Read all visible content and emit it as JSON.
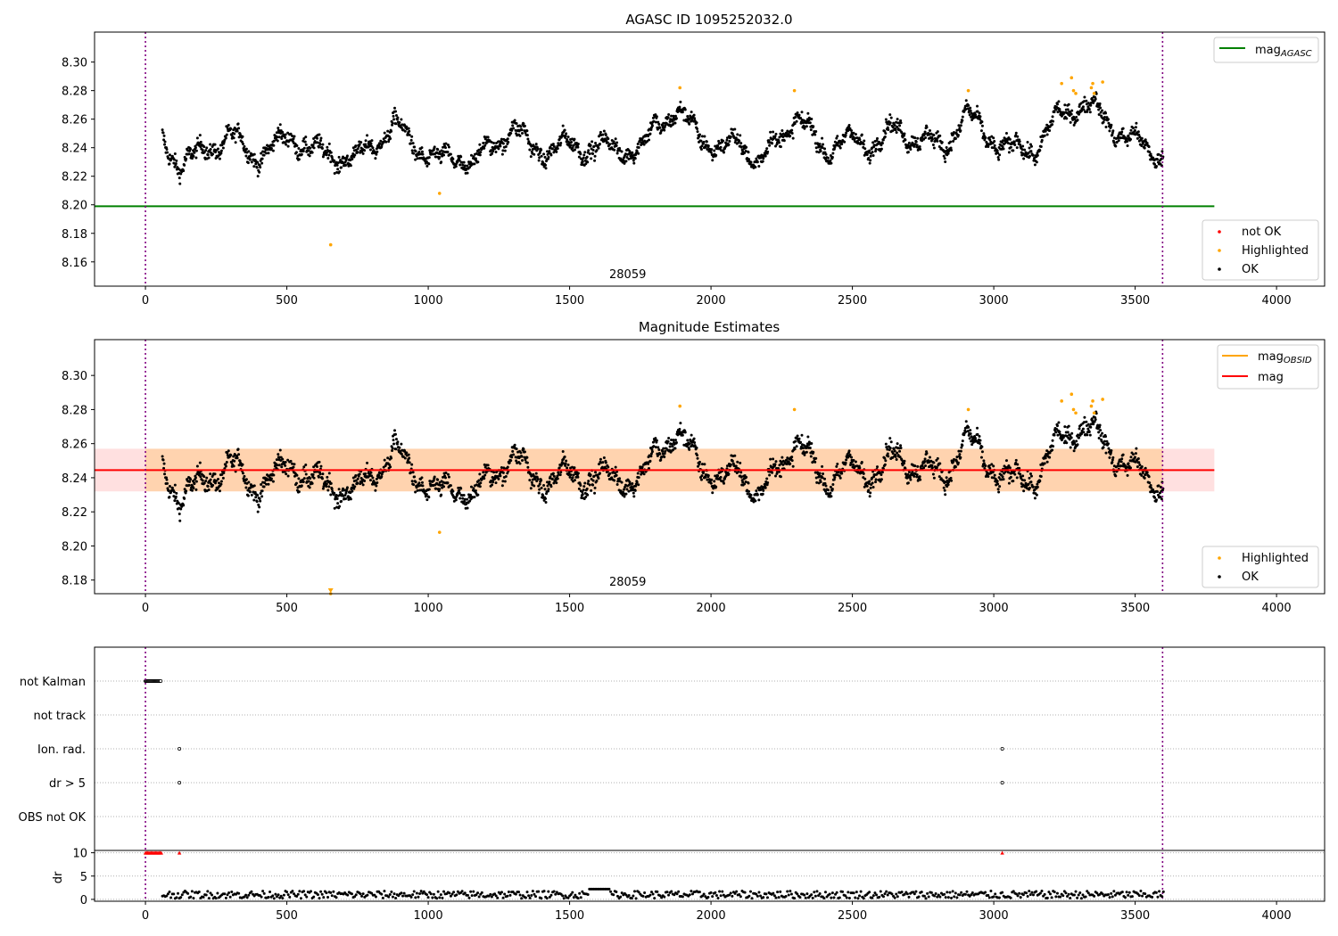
{
  "chart_data": [
    {
      "type": "scatter",
      "title": "AGASC ID 1095252032.0",
      "xlabel": "",
      "ylabel": "",
      "xlim": [
        -180,
        4170
      ],
      "ylim": [
        8.143,
        8.321
      ],
      "xticks": [
        0,
        500,
        1000,
        1500,
        2000,
        2500,
        3000,
        3500,
        4000
      ],
      "yticks": [
        8.16,
        8.18,
        8.2,
        8.22,
        8.24,
        8.26,
        8.28,
        8.3
      ],
      "obsid_boundaries": [
        0,
        3597
      ],
      "obsid_label": {
        "text": "28059",
        "x": 1800
      },
      "mag_agasc": 8.199,
      "mag_agasc_line_x": [
        -180,
        3780
      ],
      "legend_lines": {
        "name": "mag",
        "sub": "AGASC",
        "color": "#008000"
      },
      "legend_points": [
        {
          "name": "not OK",
          "color": "#ff0000"
        },
        {
          "name": "Highlighted",
          "color": "#ffa500"
        },
        {
          "name": "OK",
          "color": "#000000"
        }
      ],
      "series": [
        {
          "name": "OK",
          "color": "#000000",
          "description": "dense black time series ~8.21–8.28 from x≈60 to x≈3600",
          "anchors_x": [
            60,
            120,
            200,
            300,
            380,
            450,
            520,
            600,
            680,
            750,
            820,
            880,
            950,
            1040,
            1100,
            1160,
            1220,
            1300,
            1360,
            1420,
            1500,
            1560,
            1650,
            1760,
            1800,
            1870,
            1950,
            2040,
            2100,
            2170,
            2230,
            2300,
            2400,
            2480,
            2550,
            2650,
            2750,
            2820,
            2900,
            2980,
            3060,
            3150,
            3230,
            3300,
            3350,
            3420,
            3480,
            3600
          ],
          "anchors_y": [
            8.244,
            8.229,
            8.236,
            8.249,
            8.234,
            8.24,
            8.248,
            8.237,
            8.234,
            8.232,
            8.245,
            8.256,
            8.242,
            8.23,
            8.234,
            8.229,
            8.24,
            8.255,
            8.24,
            8.238,
            8.242,
            8.24,
            8.24,
            8.238,
            8.256,
            8.265,
            8.252,
            8.236,
            8.247,
            8.228,
            8.244,
            8.262,
            8.238,
            8.246,
            8.241,
            8.252,
            8.246,
            8.239,
            8.264,
            8.248,
            8.238,
            8.24,
            8.262,
            8.27,
            8.268,
            8.255,
            8.246,
            8.234
          ]
        },
        {
          "name": "Highlighted",
          "color": "#ffa500",
          "x": [
            655,
            1040,
            1890,
            2295,
            2910,
            3240,
            3275,
            3282,
            3290,
            3345,
            3350,
            3355,
            3385
          ],
          "y": [
            8.172,
            8.208,
            8.282,
            8.28,
            8.28,
            8.285,
            8.289,
            8.28,
            8.278,
            8.282,
            8.285,
            8.278,
            8.286
          ]
        },
        {
          "name": "not OK",
          "color": "#ff0000",
          "x": [],
          "y": []
        }
      ]
    },
    {
      "type": "scatter",
      "title": "Magnitude Estimates",
      "xlabel": "",
      "ylabel": "",
      "xlim": [
        -180,
        4170
      ],
      "ylim": [
        8.172,
        8.321
      ],
      "xticks": [
        0,
        500,
        1000,
        1500,
        2000,
        2500,
        3000,
        3500,
        4000
      ],
      "yticks": [
        8.18,
        8.2,
        8.22,
        8.24,
        8.26,
        8.28,
        8.3
      ],
      "obsid_boundaries": [
        0,
        3597
      ],
      "obsid_label": {
        "text": "28059",
        "x": 1800
      },
      "mag": 8.2445,
      "mag_band": [
        8.232,
        8.257
      ],
      "mag_band_x": [
        -180,
        3780
      ],
      "legend_lines": [
        {
          "name": "mag",
          "sub": "OBSID",
          "color": "#ffa500"
        },
        {
          "name": "mag",
          "sub": "",
          "color": "#ff0000"
        }
      ],
      "legend_points": [
        {
          "name": "Highlighted",
          "color": "#ffa500"
        },
        {
          "name": "OK",
          "color": "#000000"
        }
      ],
      "highlighted_below_range_x": 655
    },
    {
      "type": "scatter",
      "title": "",
      "xlim": [
        -180,
        4170
      ],
      "flags_panel": {
        "categories": [
          "not Kalman",
          "not track",
          "Ion. rad.",
          "dr > 5",
          "OBS not OK"
        ],
        "points": [
          {
            "category": "not Kalman",
            "x": [
              0,
              3,
              6,
              9,
              12,
              15,
              18,
              21,
              24,
              27,
              30,
              33,
              36,
              39,
              42,
              45,
              48,
              51,
              54
            ]
          },
          {
            "category": "not track",
            "x": []
          },
          {
            "category": "Ion. rad.",
            "x": [
              120,
              3030
            ]
          },
          {
            "category": "dr > 5",
            "x": [
              120,
              3030
            ]
          },
          {
            "category": "OBS not OK",
            "x": []
          }
        ]
      },
      "dr_panel": {
        "ylabel": "dr",
        "yticks": [
          0,
          5,
          10
        ],
        "ylim": [
          -0.4,
          10.5
        ],
        "clipped_value": 10,
        "clipped_x": [
          0,
          4,
          8,
          12,
          16,
          20,
          24,
          28,
          32,
          36,
          40,
          44,
          48,
          52,
          56,
          120,
          3030
        ],
        "baseline_x": [
          60,
          3600
        ],
        "baseline_values": [
          0.2,
          1.8
        ],
        "bump_x": [
          1570,
          1640
        ],
        "bump_value": 2.2
      }
    }
  ]
}
